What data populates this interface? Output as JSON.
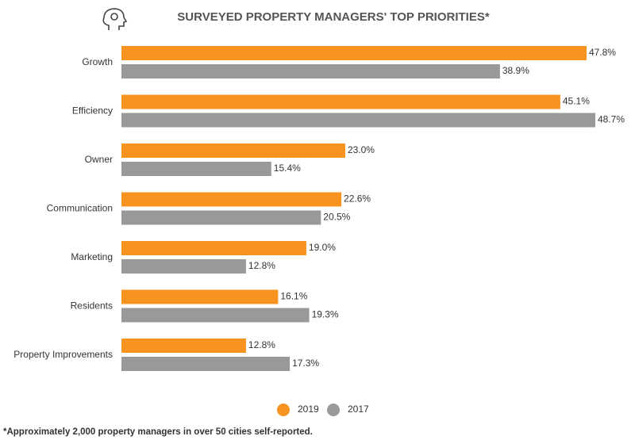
{
  "chart_data": {
    "type": "bar",
    "orientation": "horizontal",
    "title": "SURVEYED PROPERTY MANAGERS' TOP PRIORITIES*",
    "categories": [
      "Growth",
      "Efficiency",
      "Owner",
      "Communication",
      "Marketing",
      "Residents",
      "Property Improvements"
    ],
    "series": [
      {
        "name": "2019",
        "color": "#f7931e",
        "values": [
          47.8,
          45.1,
          23.0,
          22.6,
          19.0,
          16.1,
          12.8
        ],
        "value_labels": [
          "47.8%",
          "45.1%",
          "23.0%",
          "22.6%",
          "19.0%",
          "16.1%",
          "12.8%"
        ]
      },
      {
        "name": "2017",
        "color": "#999999",
        "values": [
          38.9,
          48.7,
          15.4,
          20.5,
          12.8,
          19.3,
          17.3
        ],
        "value_labels": [
          "38.9%",
          "48.7%",
          "15.4%",
          "20.5%",
          "12.8%",
          "19.3%",
          "17.3%"
        ]
      }
    ],
    "footnote": "*Approximately 2,000 property managers in over 50 cities self-reported."
  }
}
